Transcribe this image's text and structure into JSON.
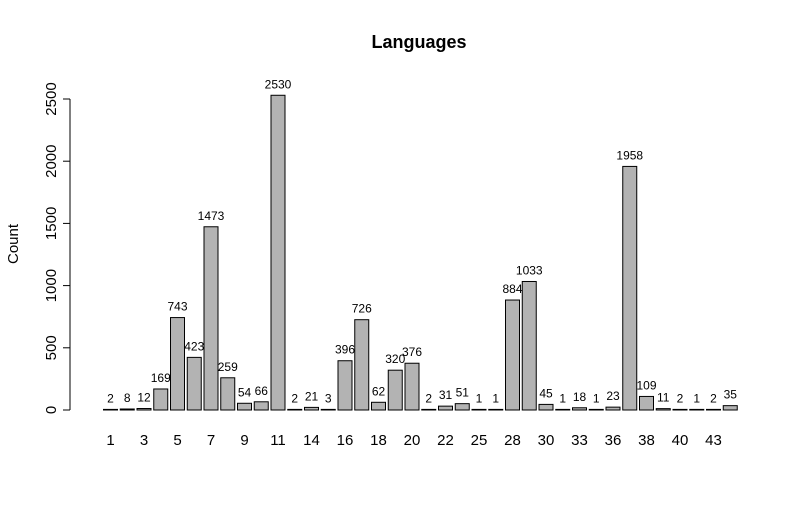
{
  "chart_data": {
    "type": "bar",
    "title": "Languages",
    "xlabel": "",
    "ylabel": "Count",
    "ylim": [
      0,
      2500
    ],
    "yticks": [
      "0",
      "500",
      "1000",
      "1500",
      "2000",
      "2500"
    ],
    "grid": false,
    "values": [
      2,
      8,
      12,
      169,
      743,
      423,
      1473,
      259,
      54,
      66,
      2530,
      2,
      21,
      3,
      396,
      726,
      62,
      320,
      376,
      2,
      31,
      51,
      1,
      1,
      884,
      1033,
      45,
      1,
      18,
      1,
      23,
      1958,
      109,
      11,
      2,
      1,
      2,
      35
    ],
    "data_labels": [
      "2",
      "8",
      "12",
      "169",
      "743",
      "423",
      "1473",
      "259",
      "54",
      "66",
      "2530",
      "2",
      "21",
      "3",
      "396",
      "726",
      "62",
      "320",
      "376",
      "2",
      "31",
      "51",
      "1",
      "1",
      "884",
      "1033",
      "45",
      "1",
      "18",
      "1",
      "23",
      "1958",
      "109",
      "11",
      "2",
      "1",
      "2",
      "35"
    ],
    "xtick_labels": [
      {
        "bar": 0,
        "text": "1"
      },
      {
        "bar": 2,
        "text": "3"
      },
      {
        "bar": 4,
        "text": "5"
      },
      {
        "bar": 6,
        "text": "7"
      },
      {
        "bar": 8,
        "text": "9"
      },
      {
        "bar": 10,
        "text": "11"
      },
      {
        "bar": 12,
        "text": "14"
      },
      {
        "bar": 14,
        "text": "16"
      },
      {
        "bar": 16,
        "text": "18"
      },
      {
        "bar": 18,
        "text": "20"
      },
      {
        "bar": 20,
        "text": "22"
      },
      {
        "bar": 22,
        "text": "25"
      },
      {
        "bar": 24,
        "text": "28"
      },
      {
        "bar": 26,
        "text": "30"
      },
      {
        "bar": 28,
        "text": "33"
      },
      {
        "bar": 30,
        "text": "36"
      },
      {
        "bar": 32,
        "text": "38"
      },
      {
        "bar": 34,
        "text": "40"
      },
      {
        "bar": 36,
        "text": "43"
      }
    ],
    "colors": {
      "bar_fill": "#b3b3b3",
      "bar_stroke": "#000000"
    }
  }
}
